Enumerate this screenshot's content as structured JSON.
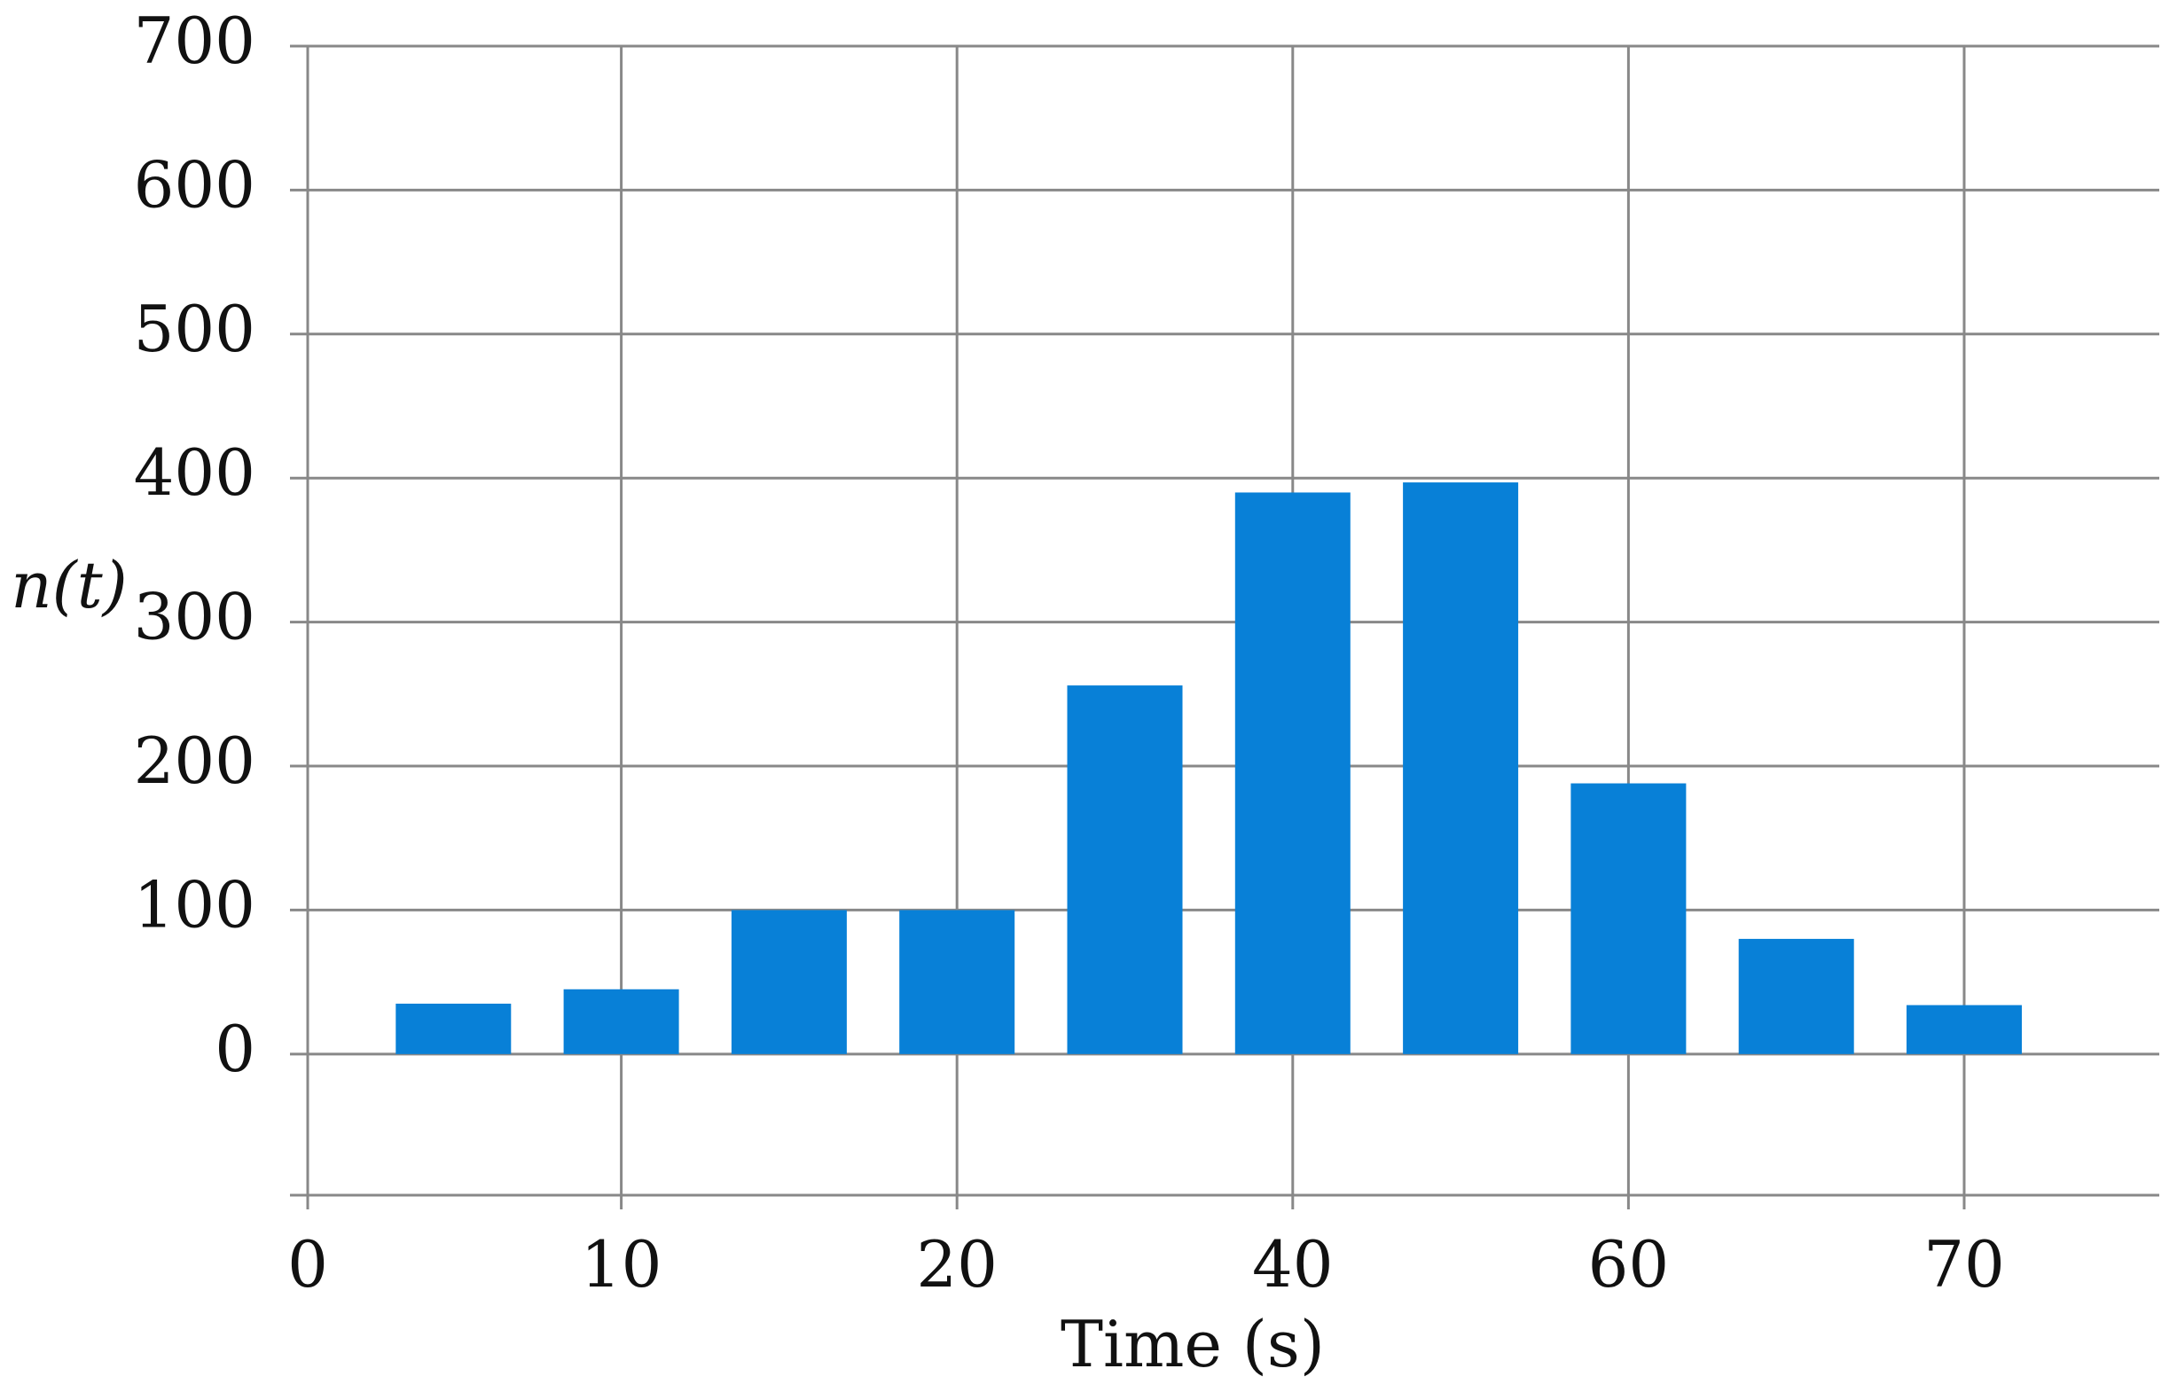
{
  "chart_data": {
    "type": "bar",
    "x_label": "Time (s)",
    "y_label": "n(t)",
    "x_start_label": "0",
    "categories": [
      null,
      "10",
      null,
      "20",
      null,
      "40",
      null,
      "60",
      null,
      "70"
    ],
    "values": [
      35,
      45,
      100,
      100,
      256,
      390,
      397,
      188,
      80,
      34
    ],
    "color": "#0880d7",
    "ylim": [
      -98,
      700
    ],
    "yticks": [
      0,
      100,
      200,
      300,
      400,
      500,
      600,
      700
    ],
    "grid": true
  }
}
